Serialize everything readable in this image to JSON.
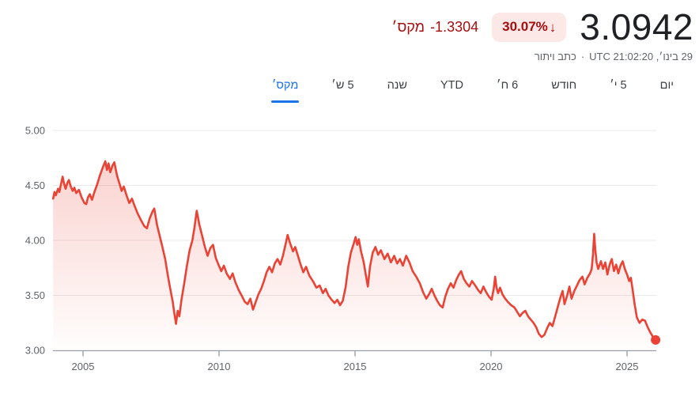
{
  "header": {
    "price": "3.0942",
    "change_percent": "30.07%",
    "change_arrow": "↓",
    "change_direction": "down",
    "change_value": "-1.3304",
    "change_period": "מקס׳",
    "timestamp": "29 בינו׳, UTC 21:02:20",
    "separator": "·",
    "disclaimer": "כתב ויתור",
    "colors": {
      "price_text": "#202124",
      "negative_text": "#a50e0e",
      "badge_bg": "#fce8e6",
      "subtitle_text": "#5f6368"
    }
  },
  "tabs": {
    "active_color": "#1a73e8",
    "inactive_color": "#3c4043",
    "items": [
      {
        "key": "1d",
        "label": "יום",
        "active": false
      },
      {
        "key": "5d",
        "label": "5 י׳",
        "active": false
      },
      {
        "key": "1m",
        "label": "חודש",
        "active": false
      },
      {
        "key": "6m",
        "label": "6 ח׳",
        "active": false
      },
      {
        "key": "ytd",
        "label": "YTD",
        "active": false
      },
      {
        "key": "1y",
        "label": "שנה",
        "active": false
      },
      {
        "key": "5y",
        "label": "5 ש׳",
        "active": false
      },
      {
        "key": "max",
        "label": "מקס׳",
        "active": true
      }
    ]
  },
  "chart_data": {
    "type": "area",
    "title": "",
    "xlabel": "",
    "ylabel": "",
    "grid": true,
    "legend": false,
    "line_color": "#ea4335",
    "grid_color": "#e8e8e8",
    "axis_color": "#9aa0a6",
    "label_color": "#5f6368",
    "xlim": [
      2003.9,
      2026.1
    ],
    "ylim": [
      3.0,
      5.0
    ],
    "x_ticks": [
      2005,
      2010,
      2015,
      2020,
      2025
    ],
    "x_tick_labels": [
      "2005",
      "2010",
      "2015",
      "2020",
      "2025"
    ],
    "y_ticks": [
      3.0,
      3.5,
      4.0,
      4.5,
      5.0
    ],
    "y_tick_labels": [
      "3.00",
      "3.50",
      "4.00",
      "4.50",
      "5.00"
    ],
    "end_dot": {
      "x": 2026.05,
      "y": 3.0942
    },
    "points": [
      [
        2003.9,
        4.38
      ],
      [
        2003.95,
        4.44
      ],
      [
        2004.0,
        4.41
      ],
      [
        2004.08,
        4.47
      ],
      [
        2004.13,
        4.44
      ],
      [
        2004.18,
        4.5
      ],
      [
        2004.25,
        4.58
      ],
      [
        2004.3,
        4.52
      ],
      [
        2004.36,
        4.47
      ],
      [
        2004.42,
        4.52
      ],
      [
        2004.48,
        4.55
      ],
      [
        2004.55,
        4.49
      ],
      [
        2004.62,
        4.45
      ],
      [
        2004.68,
        4.48
      ],
      [
        2004.75,
        4.43
      ],
      [
        2004.85,
        4.46
      ],
      [
        2004.95,
        4.39
      ],
      [
        2005.05,
        4.34
      ],
      [
        2005.12,
        4.33
      ],
      [
        2005.18,
        4.39
      ],
      [
        2005.25,
        4.42
      ],
      [
        2005.33,
        4.37
      ],
      [
        2005.42,
        4.44
      ],
      [
        2005.52,
        4.51
      ],
      [
        2005.62,
        4.59
      ],
      [
        2005.72,
        4.66
      ],
      [
        2005.82,
        4.72
      ],
      [
        2005.88,
        4.64
      ],
      [
        2005.94,
        4.7
      ],
      [
        2006.0,
        4.62
      ],
      [
        2006.08,
        4.68
      ],
      [
        2006.15,
        4.71
      ],
      [
        2006.25,
        4.59
      ],
      [
        2006.35,
        4.51
      ],
      [
        2006.42,
        4.45
      ],
      [
        2006.5,
        4.49
      ],
      [
        2006.6,
        4.41
      ],
      [
        2006.7,
        4.34
      ],
      [
        2006.8,
        4.38
      ],
      [
        2006.9,
        4.31
      ],
      [
        2007.0,
        4.25
      ],
      [
        2007.12,
        4.19
      ],
      [
        2007.25,
        4.13
      ],
      [
        2007.35,
        4.11
      ],
      [
        2007.45,
        4.2
      ],
      [
        2007.55,
        4.26
      ],
      [
        2007.62,
        4.29
      ],
      [
        2007.72,
        4.14
      ],
      [
        2007.82,
        4.04
      ],
      [
        2007.92,
        3.94
      ],
      [
        2008.02,
        3.83
      ],
      [
        2008.12,
        3.68
      ],
      [
        2008.22,
        3.54
      ],
      [
        2008.3,
        3.44
      ],
      [
        2008.36,
        3.33
      ],
      [
        2008.42,
        3.24
      ],
      [
        2008.48,
        3.36
      ],
      [
        2008.54,
        3.31
      ],
      [
        2008.62,
        3.46
      ],
      [
        2008.72,
        3.61
      ],
      [
        2008.82,
        3.77
      ],
      [
        2008.92,
        3.91
      ],
      [
        2009.02,
        4.0
      ],
      [
        2009.1,
        4.12
      ],
      [
        2009.18,
        4.27
      ],
      [
        2009.28,
        4.14
      ],
      [
        2009.38,
        4.04
      ],
      [
        2009.48,
        3.94
      ],
      [
        2009.58,
        3.86
      ],
      [
        2009.68,
        3.93
      ],
      [
        2009.78,
        3.96
      ],
      [
        2009.88,
        3.84
      ],
      [
        2009.98,
        3.78
      ],
      [
        2010.08,
        3.72
      ],
      [
        2010.18,
        3.77
      ],
      [
        2010.28,
        3.7
      ],
      [
        2010.4,
        3.65
      ],
      [
        2010.5,
        3.7
      ],
      [
        2010.6,
        3.62
      ],
      [
        2010.72,
        3.55
      ],
      [
        2010.85,
        3.49
      ],
      [
        2010.95,
        3.44
      ],
      [
        2011.05,
        3.42
      ],
      [
        2011.15,
        3.47
      ],
      [
        2011.25,
        3.37
      ],
      [
        2011.35,
        3.44
      ],
      [
        2011.45,
        3.51
      ],
      [
        2011.55,
        3.56
      ],
      [
        2011.65,
        3.63
      ],
      [
        2011.75,
        3.71
      ],
      [
        2011.85,
        3.76
      ],
      [
        2011.95,
        3.71
      ],
      [
        2012.05,
        3.79
      ],
      [
        2012.15,
        3.83
      ],
      [
        2012.25,
        3.78
      ],
      [
        2012.35,
        3.86
      ],
      [
        2012.45,
        3.97
      ],
      [
        2012.52,
        4.05
      ],
      [
        2012.62,
        3.97
      ],
      [
        2012.72,
        3.9
      ],
      [
        2012.8,
        3.94
      ],
      [
        2012.9,
        3.86
      ],
      [
        2013.0,
        3.78
      ],
      [
        2013.1,
        3.71
      ],
      [
        2013.2,
        3.76
      ],
      [
        2013.32,
        3.68
      ],
      [
        2013.45,
        3.63
      ],
      [
        2013.58,
        3.57
      ],
      [
        2013.7,
        3.59
      ],
      [
        2013.82,
        3.52
      ],
      [
        2013.92,
        3.56
      ],
      [
        2014.02,
        3.5
      ],
      [
        2014.14,
        3.46
      ],
      [
        2014.25,
        3.43
      ],
      [
        2014.35,
        3.46
      ],
      [
        2014.45,
        3.41
      ],
      [
        2014.55,
        3.45
      ],
      [
        2014.65,
        3.57
      ],
      [
        2014.75,
        3.76
      ],
      [
        2014.85,
        3.89
      ],
      [
        2014.95,
        3.97
      ],
      [
        2015.02,
        4.03
      ],
      [
        2015.08,
        3.96
      ],
      [
        2015.14,
        4.01
      ],
      [
        2015.22,
        3.9
      ],
      [
        2015.32,
        3.8
      ],
      [
        2015.4,
        3.68
      ],
      [
        2015.47,
        3.58
      ],
      [
        2015.55,
        3.76
      ],
      [
        2015.65,
        3.89
      ],
      [
        2015.75,
        3.94
      ],
      [
        2015.85,
        3.87
      ],
      [
        2015.95,
        3.91
      ],
      [
        2016.08,
        3.83
      ],
      [
        2016.2,
        3.88
      ],
      [
        2016.32,
        3.8
      ],
      [
        2016.44,
        3.86
      ],
      [
        2016.55,
        3.79
      ],
      [
        2016.65,
        3.83
      ],
      [
        2016.76,
        3.77
      ],
      [
        2016.88,
        3.86
      ],
      [
        2017.0,
        3.8
      ],
      [
        2017.12,
        3.72
      ],
      [
        2017.25,
        3.67
      ],
      [
        2017.38,
        3.61
      ],
      [
        2017.5,
        3.53
      ],
      [
        2017.62,
        3.47
      ],
      [
        2017.72,
        3.51
      ],
      [
        2017.82,
        3.56
      ],
      [
        2017.92,
        3.5
      ],
      [
        2018.02,
        3.45
      ],
      [
        2018.12,
        3.41
      ],
      [
        2018.22,
        3.39
      ],
      [
        2018.32,
        3.49
      ],
      [
        2018.42,
        3.56
      ],
      [
        2018.52,
        3.61
      ],
      [
        2018.62,
        3.57
      ],
      [
        2018.72,
        3.64
      ],
      [
        2018.82,
        3.69
      ],
      [
        2018.9,
        3.72
      ],
      [
        2019.0,
        3.65
      ],
      [
        2019.1,
        3.61
      ],
      [
        2019.2,
        3.58
      ],
      [
        2019.3,
        3.63
      ],
      [
        2019.42,
        3.59
      ],
      [
        2019.52,
        3.55
      ],
      [
        2019.62,
        3.52
      ],
      [
        2019.72,
        3.58
      ],
      [
        2019.82,
        3.53
      ],
      [
        2019.92,
        3.49
      ],
      [
        2020.02,
        3.46
      ],
      [
        2020.1,
        3.56
      ],
      [
        2020.15,
        3.67
      ],
      [
        2020.2,
        3.57
      ],
      [
        2020.26,
        3.52
      ],
      [
        2020.33,
        3.57
      ],
      [
        2020.42,
        3.51
      ],
      [
        2020.52,
        3.47
      ],
      [
        2020.62,
        3.44
      ],
      [
        2020.74,
        3.41
      ],
      [
        2020.86,
        3.39
      ],
      [
        2020.96,
        3.35
      ],
      [
        2021.06,
        3.31
      ],
      [
        2021.16,
        3.34
      ],
      [
        2021.26,
        3.36
      ],
      [
        2021.36,
        3.31
      ],
      [
        2021.46,
        3.28
      ],
      [
        2021.56,
        3.25
      ],
      [
        2021.66,
        3.21
      ],
      [
        2021.76,
        3.15
      ],
      [
        2021.86,
        3.12
      ],
      [
        2021.96,
        3.14
      ],
      [
        2022.06,
        3.2
      ],
      [
        2022.16,
        3.25
      ],
      [
        2022.26,
        3.22
      ],
      [
        2022.36,
        3.31
      ],
      [
        2022.46,
        3.4
      ],
      [
        2022.56,
        3.49
      ],
      [
        2022.63,
        3.54
      ],
      [
        2022.7,
        3.42
      ],
      [
        2022.8,
        3.5
      ],
      [
        2022.88,
        3.58
      ],
      [
        2022.96,
        3.47
      ],
      [
        2023.06,
        3.54
      ],
      [
        2023.16,
        3.59
      ],
      [
        2023.26,
        3.64
      ],
      [
        2023.36,
        3.67
      ],
      [
        2023.44,
        3.6
      ],
      [
        2023.54,
        3.66
      ],
      [
        2023.64,
        3.7
      ],
      [
        2023.7,
        3.74
      ],
      [
        2023.75,
        3.88
      ],
      [
        2023.79,
        4.06
      ],
      [
        2023.83,
        3.92
      ],
      [
        2023.88,
        3.8
      ],
      [
        2023.94,
        3.74
      ],
      [
        2024.04,
        3.81
      ],
      [
        2024.12,
        3.74
      ],
      [
        2024.2,
        3.8
      ],
      [
        2024.28,
        3.69
      ],
      [
        2024.36,
        3.78
      ],
      [
        2024.44,
        3.83
      ],
      [
        2024.52,
        3.72
      ],
      [
        2024.6,
        3.78
      ],
      [
        2024.68,
        3.7
      ],
      [
        2024.76,
        3.77
      ],
      [
        2024.84,
        3.81
      ],
      [
        2024.92,
        3.74
      ],
      [
        2025.0,
        3.69
      ],
      [
        2025.08,
        3.63
      ],
      [
        2025.14,
        3.66
      ],
      [
        2025.2,
        3.56
      ],
      [
        2025.28,
        3.42
      ],
      [
        2025.36,
        3.3
      ],
      [
        2025.46,
        3.25
      ],
      [
        2025.56,
        3.28
      ],
      [
        2025.66,
        3.27
      ],
      [
        2025.76,
        3.21
      ],
      [
        2025.86,
        3.16
      ],
      [
        2025.96,
        3.12
      ],
      [
        2026.05,
        3.09
      ]
    ]
  }
}
